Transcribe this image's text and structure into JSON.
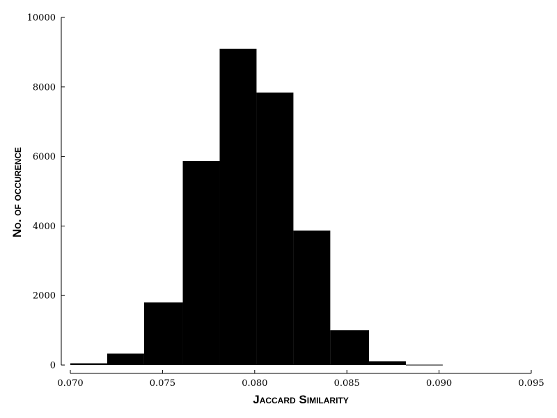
{
  "chart_data": {
    "type": "bar",
    "subtype": "histogram",
    "title": "",
    "xlabel": "Jaccard Similarity",
    "ylabel": "No. of occurence",
    "xlim": [
      0.07,
      0.095
    ],
    "ylim": [
      0,
      10000
    ],
    "xticks": [
      "0.070",
      "0.075",
      "0.080",
      "0.085",
      "0.090",
      "0.095"
    ],
    "yticks": [
      "0",
      "2000",
      "4000",
      "6000",
      "8000",
      "10000"
    ],
    "grid": false,
    "legend": "none",
    "bar_color": "#000000",
    "bins": [
      {
        "x0": 0.07,
        "x1": 0.072,
        "count": 50
      },
      {
        "x0": 0.072,
        "x1": 0.074,
        "count": 330
      },
      {
        "x0": 0.074,
        "x1": 0.0761,
        "count": 1800
      },
      {
        "x0": 0.0761,
        "x1": 0.0781,
        "count": 5870
      },
      {
        "x0": 0.0781,
        "x1": 0.0801,
        "count": 9100
      },
      {
        "x0": 0.0801,
        "x1": 0.0821,
        "count": 7840
      },
      {
        "x0": 0.0821,
        "x1": 0.0841,
        "count": 3870
      },
      {
        "x0": 0.0841,
        "x1": 0.0862,
        "count": 1000
      },
      {
        "x0": 0.0862,
        "x1": 0.0882,
        "count": 110
      },
      {
        "x0": 0.0882,
        "x1": 0.0902,
        "count": 10
      }
    ]
  }
}
